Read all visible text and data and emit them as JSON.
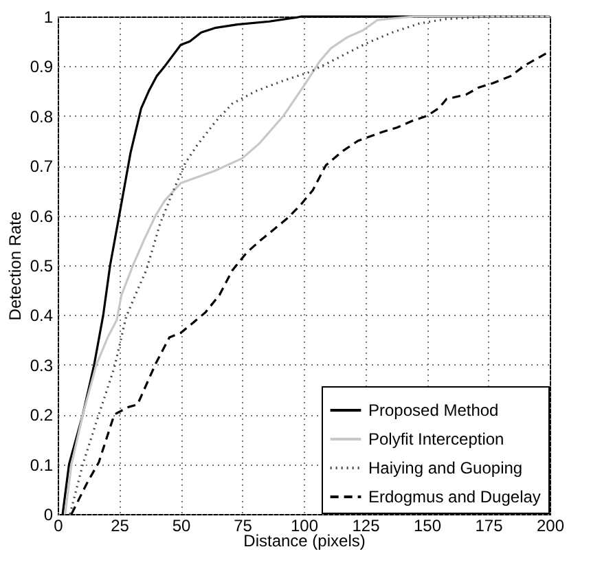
{
  "chart_data": {
    "type": "line",
    "xlabel": "Distance (pixels)",
    "ylabel": "Detection Rate",
    "xlim": [
      0,
      200
    ],
    "xticks": [
      0,
      25,
      50,
      75,
      100,
      125,
      150,
      175,
      200
    ],
    "ylim": [
      0,
      1
    ],
    "yticks": [
      0,
      0.1,
      0.2,
      0.3,
      0.4,
      0.5,
      0.6,
      0.7,
      0.8,
      0.9,
      1
    ],
    "grid": true,
    "legend": "bottom right",
    "series": [
      {
        "name": "Proposed Method",
        "color": "#000000",
        "line_style": "solid",
        "x": [
          2,
          4.6,
          10.2,
          14.8,
          18.5,
          21.3,
          25,
          29.6,
          33.9,
          37,
          40.2,
          43.5,
          50,
          53.7,
          58.3,
          63.9,
          73,
          86,
          97,
          99,
          200
        ],
        "values": [
          0,
          0.1,
          0.2,
          0.3,
          0.4,
          0.5,
          0.6,
          0.726,
          0.815,
          0.85,
          0.88,
          0.9,
          0.943,
          0.95,
          0.968,
          0.977,
          0.984,
          0.99,
          0.998,
          1,
          1
        ]
      },
      {
        "name": "Polyfit Interception",
        "color": "#c8c8c8",
        "line_style": "solid",
        "x": [
          3,
          5.6,
          10.2,
          15.7,
          20.4,
          24,
          25.9,
          30.6,
          35,
          39.8,
          43.5,
          50,
          58.3,
          63.9,
          75,
          82,
          91.7,
          97.2,
          100.9,
          106.5,
          111,
          117.6,
          124,
          130,
          134,
          145,
          200
        ],
        "values": [
          0,
          0.1,
          0.2,
          0.3,
          0.356,
          0.39,
          0.44,
          0.5,
          0.55,
          0.6,
          0.63,
          0.665,
          0.68,
          0.69,
          0.715,
          0.745,
          0.8,
          0.84,
          0.867,
          0.91,
          0.936,
          0.958,
          0.972,
          0.993,
          0.995,
          1,
          1
        ]
      },
      {
        "name": "Haiying and Guoping",
        "color": "#444444",
        "line_style": "dotted",
        "x": [
          5,
          10.2,
          16.7,
          23,
          27.8,
          32.4,
          36,
          41.7,
          47,
          51.8,
          56.5,
          64,
          71,
          80.5,
          91.7,
          102.8,
          114,
          125,
          136,
          147,
          158,
          176,
          200
        ],
        "values": [
          0,
          0.1,
          0.2,
          0.294,
          0.396,
          0.45,
          0.49,
          0.585,
          0.65,
          0.705,
          0.74,
          0.788,
          0.825,
          0.85,
          0.871,
          0.889,
          0.917,
          0.945,
          0.968,
          0.986,
          0.995,
          1,
          1
        ]
      },
      {
        "name": "Erdogmus and Dugelay",
        "color": "#000000",
        "line_style": "dashed",
        "x": [
          5.6,
          12,
          16.7,
          23,
          28.7,
          32.4,
          40,
          45.4,
          50,
          60,
          65.7,
          71,
          76.9,
          82.4,
          93.5,
          99,
          103.7,
          109,
          115.7,
          122,
          132,
          138,
          144,
          150,
          155,
          158,
          166,
          171,
          176.9,
          184,
          190,
          200
        ],
        "values": [
          0,
          0.063,
          0.104,
          0.2,
          0.215,
          0.22,
          0.304,
          0.355,
          0.364,
          0.405,
          0.44,
          0.49,
          0.526,
          0.55,
          0.595,
          0.623,
          0.651,
          0.701,
          0.729,
          0.75,
          0.768,
          0.777,
          0.79,
          0.8,
          0.816,
          0.834,
          0.843,
          0.857,
          0.866,
          0.88,
          0.902,
          0.93
        ]
      }
    ]
  }
}
